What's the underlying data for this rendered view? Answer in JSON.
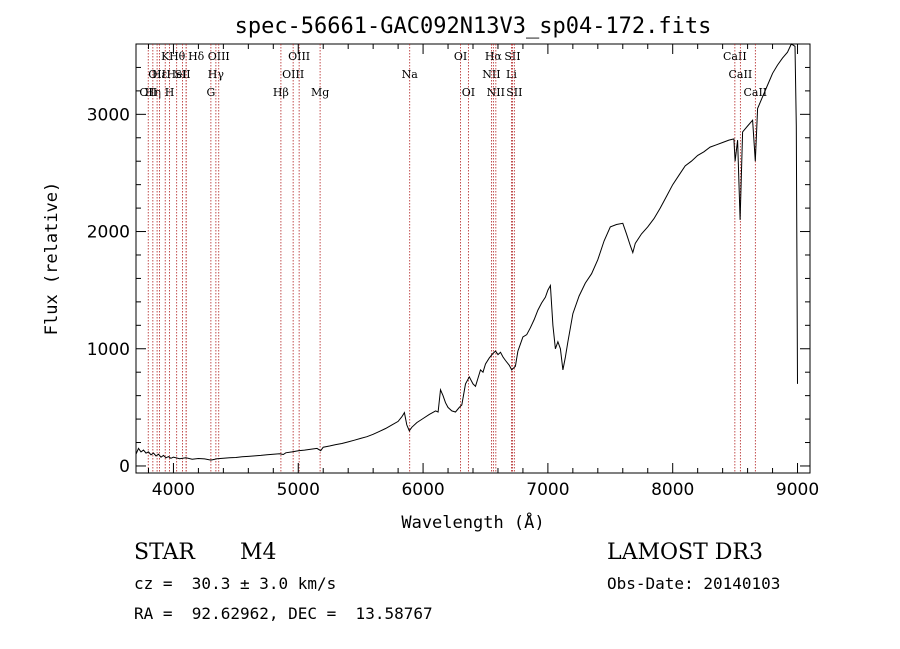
{
  "chart_data": {
    "type": "line",
    "title": "spec-56661-GAC092N13V3_sp04-172.fits",
    "xlabel": "Wavelength (Å)",
    "ylabel": "Flux (relative)",
    "xlim": [
      3700,
      9100
    ],
    "ylim": [
      -60,
      3600
    ],
    "xticks": [
      4000,
      5000,
      6000,
      7000,
      8000,
      9000
    ],
    "yticks": [
      0,
      1000,
      2000,
      3000
    ],
    "line_color": "#000000",
    "marker_color": "#b22222",
    "lines": [
      {
        "wl": 3798,
        "label": "OII",
        "row": 2
      },
      {
        "wl": 3835,
        "label": "Hη",
        "row": 2
      },
      {
        "wl": 3869,
        "label": "OII",
        "row": 1
      },
      {
        "wl": 3889,
        "label": "Hε",
        "row": 1
      },
      {
        "wl": 3934,
        "label": "K",
        "row": 0
      },
      {
        "wl": 3969,
        "label": "H",
        "row": 2
      },
      {
        "wl": 4026,
        "label": "HeI",
        "row": 1
      },
      {
        "wl": 4072,
        "label": "SII",
        "row": 1
      },
      {
        "wl": 4102,
        "label": "Hδ",
        "row": 0
      },
      {
        "wl": 4102,
        "label": "Hθ",
        "row": 0
      },
      {
        "wl": 4300,
        "label": "G",
        "row": 2
      },
      {
        "wl": 4340,
        "label": "Hγ",
        "row": 1
      },
      {
        "wl": 4363,
        "label": "OIII",
        "row": 0
      },
      {
        "wl": 4861,
        "label": "Hβ",
        "row": 2
      },
      {
        "wl": 4959,
        "label": "OIII",
        "row": 1
      },
      {
        "wl": 5007,
        "label": "OIII",
        "row": 0
      },
      {
        "wl": 5175,
        "label": "Mg",
        "row": 2
      },
      {
        "wl": 5893,
        "label": "Na",
        "row": 1
      },
      {
        "wl": 6300,
        "label": "OI",
        "row": 0
      },
      {
        "wl": 6363,
        "label": "OI",
        "row": 2
      },
      {
        "wl": 6548,
        "label": "NII",
        "row": 1
      },
      {
        "wl": 6563,
        "label": "Hα",
        "row": 0
      },
      {
        "wl": 6583,
        "label": "NII",
        "row": 2
      },
      {
        "wl": 6708,
        "label": "Li",
        "row": 1
      },
      {
        "wl": 6716,
        "label": "SII",
        "row": 0
      },
      {
        "wl": 6731,
        "label": "SII",
        "row": 2
      },
      {
        "wl": 8498,
        "label": "CaII",
        "row": 0
      },
      {
        "wl": 8542,
        "label": "CaII",
        "row": 1
      },
      {
        "wl": 8662,
        "label": "CaII",
        "row": 2
      }
    ],
    "series": [
      {
        "name": "flux",
        "points": [
          [
            3700,
            100
          ],
          [
            3720,
            150
          ],
          [
            3740,
            120
          ],
          [
            3760,
            135
          ],
          [
            3780,
            110
          ],
          [
            3800,
            120
          ],
          [
            3820,
            95
          ],
          [
            3840,
            110
          ],
          [
            3860,
            85
          ],
          [
            3880,
            100
          ],
          [
            3900,
            75
          ],
          [
            3920,
            90
          ],
          [
            3940,
            70
          ],
          [
            3960,
            80
          ],
          [
            3980,
            65
          ],
          [
            4000,
            75
          ],
          [
            4050,
            62
          ],
          [
            4100,
            70
          ],
          [
            4150,
            58
          ],
          [
            4200,
            64
          ],
          [
            4250,
            60
          ],
          [
            4300,
            50
          ],
          [
            4350,
            62
          ],
          [
            4400,
            66
          ],
          [
            4450,
            70
          ],
          [
            4500,
            72
          ],
          [
            4550,
            78
          ],
          [
            4600,
            82
          ],
          [
            4650,
            86
          ],
          [
            4700,
            90
          ],
          [
            4750,
            96
          ],
          [
            4800,
            100
          ],
          [
            4850,
            105
          ],
          [
            4880,
            98
          ],
          [
            4900,
            112
          ],
          [
            4950,
            120
          ],
          [
            5000,
            130
          ],
          [
            5050,
            135
          ],
          [
            5100,
            142
          ],
          [
            5150,
            150
          ],
          [
            5180,
            130
          ],
          [
            5200,
            160
          ],
          [
            5250,
            170
          ],
          [
            5300,
            182
          ],
          [
            5350,
            192
          ],
          [
            5400,
            205
          ],
          [
            5450,
            220
          ],
          [
            5500,
            235
          ],
          [
            5550,
            250
          ],
          [
            5600,
            270
          ],
          [
            5650,
            295
          ],
          [
            5700,
            320
          ],
          [
            5750,
            350
          ],
          [
            5800,
            380
          ],
          [
            5830,
            420
          ],
          [
            5850,
            455
          ],
          [
            5870,
            350
          ],
          [
            5890,
            300
          ],
          [
            5910,
            330
          ],
          [
            5950,
            370
          ],
          [
            6000,
            405
          ],
          [
            6050,
            440
          ],
          [
            6100,
            470
          ],
          [
            6120,
            460
          ],
          [
            6140,
            650
          ],
          [
            6160,
            600
          ],
          [
            6180,
            540
          ],
          [
            6200,
            500
          ],
          [
            6230,
            470
          ],
          [
            6260,
            460
          ],
          [
            6290,
            500
          ],
          [
            6310,
            520
          ],
          [
            6340,
            700
          ],
          [
            6370,
            760
          ],
          [
            6400,
            700
          ],
          [
            6420,
            680
          ],
          [
            6440,
            750
          ],
          [
            6460,
            820
          ],
          [
            6480,
            800
          ],
          [
            6500,
            870
          ],
          [
            6530,
            920
          ],
          [
            6560,
            960
          ],
          [
            6580,
            980
          ],
          [
            6600,
            950
          ],
          [
            6620,
            970
          ],
          [
            6640,
            930
          ],
          [
            6660,
            900
          ],
          [
            6690,
            860
          ],
          [
            6710,
            820
          ],
          [
            6740,
            850
          ],
          [
            6760,
            980
          ],
          [
            6780,
            1040
          ],
          [
            6800,
            1100
          ],
          [
            6830,
            1120
          ],
          [
            6860,
            1180
          ],
          [
            6890,
            1250
          ],
          [
            6920,
            1330
          ],
          [
            6950,
            1390
          ],
          [
            6980,
            1440
          ],
          [
            7000,
            1500
          ],
          [
            7020,
            1540
          ],
          [
            7040,
            1200
          ],
          [
            7060,
            1000
          ],
          [
            7080,
            1060
          ],
          [
            7100,
            1000
          ],
          [
            7120,
            820
          ],
          [
            7140,
            930
          ],
          [
            7160,
            1060
          ],
          [
            7180,
            1180
          ],
          [
            7200,
            1300
          ],
          [
            7250,
            1450
          ],
          [
            7300,
            1560
          ],
          [
            7350,
            1640
          ],
          [
            7400,
            1760
          ],
          [
            7450,
            1920
          ],
          [
            7500,
            2040
          ],
          [
            7550,
            2060
          ],
          [
            7600,
            2070
          ],
          [
            7630,
            1980
          ],
          [
            7660,
            1880
          ],
          [
            7680,
            1820
          ],
          [
            7700,
            1900
          ],
          [
            7750,
            1980
          ],
          [
            7800,
            2040
          ],
          [
            7850,
            2110
          ],
          [
            7900,
            2200
          ],
          [
            7950,
            2300
          ],
          [
            8000,
            2400
          ],
          [
            8050,
            2480
          ],
          [
            8100,
            2560
          ],
          [
            8150,
            2600
          ],
          [
            8200,
            2650
          ],
          [
            8250,
            2680
          ],
          [
            8300,
            2720
          ],
          [
            8350,
            2740
          ],
          [
            8400,
            2760
          ],
          [
            8450,
            2780
          ],
          [
            8490,
            2790
          ],
          [
            8500,
            2600
          ],
          [
            8520,
            2780
          ],
          [
            8540,
            2100
          ],
          [
            8560,
            2850
          ],
          [
            8600,
            2900
          ],
          [
            8640,
            2950
          ],
          [
            8662,
            2600
          ],
          [
            8680,
            3050
          ],
          [
            8720,
            3150
          ],
          [
            8760,
            3250
          ],
          [
            8800,
            3350
          ],
          [
            8840,
            3420
          ],
          [
            8880,
            3480
          ],
          [
            8920,
            3530
          ],
          [
            8950,
            3600
          ],
          [
            8980,
            3580
          ],
          [
            8990,
            2900
          ],
          [
            9000,
            700
          ]
        ]
      }
    ]
  },
  "info": {
    "object_class": "STAR",
    "subclass": "M4",
    "release": "LAMOST DR3",
    "redshift": "cz =  30.3 ± 3.0 km/s",
    "obs_date": "Obs-Date: 20140103",
    "coords": "RA =  92.62962, DEC =  13.58767"
  }
}
